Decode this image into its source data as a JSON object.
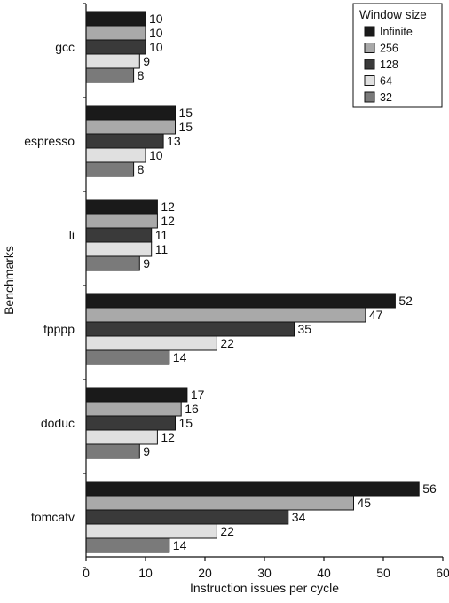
{
  "chart_data": {
    "type": "bar",
    "orientation": "horizontal",
    "categories": [
      "gcc",
      "espresso",
      "li",
      "fpppp",
      "doduc",
      "tomcatv"
    ],
    "series": [
      {
        "name": "Infinite",
        "color": "#1a1a1a",
        "values": [
          10,
          15,
          12,
          52,
          17,
          56
        ]
      },
      {
        "name": "256",
        "color": "#a9a9a9",
        "values": [
          10,
          15,
          12,
          47,
          16,
          45
        ]
      },
      {
        "name": "128",
        "color": "#3a3a3a",
        "values": [
          10,
          13,
          11,
          35,
          15,
          34
        ]
      },
      {
        "name": "64",
        "color": "#e0e0e0",
        "values": [
          9,
          10,
          11,
          22,
          12,
          22
        ]
      },
      {
        "name": "32",
        "color": "#7a7a7a",
        "values": [
          8,
          8,
          9,
          14,
          9,
          14
        ]
      }
    ],
    "xlabel": "Instruction issues per cycle",
    "ylabel": "Benchmarks",
    "xlim": [
      0,
      60
    ],
    "xticks": [
      0,
      10,
      20,
      30,
      40,
      50,
      60
    ],
    "legend_title": "Window size",
    "legend_position": "top-right",
    "grid": false
  }
}
